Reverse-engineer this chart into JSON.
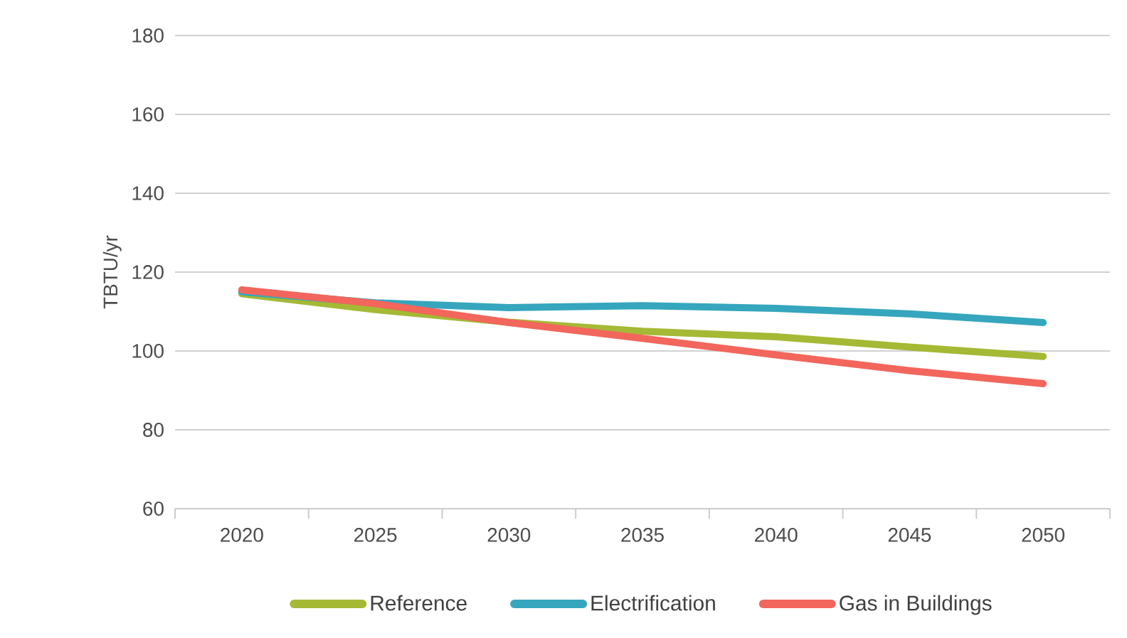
{
  "chart_data": {
    "type": "line",
    "ylabel": "TBTU/yr",
    "categories": [
      "2020",
      "2025",
      "2030",
      "2035",
      "2040",
      "2045",
      "2050"
    ],
    "series": [
      {
        "name": "Reference",
        "color": "#a5b935",
        "values": [
          114.5,
          110.5,
          107.3,
          105,
          103.6,
          101,
          98.6
        ]
      },
      {
        "name": "Electrification",
        "color": "#35a6bd",
        "values": [
          115,
          112.2,
          111,
          111.5,
          110.8,
          109.4,
          107.2
        ]
      },
      {
        "name": "Gas in Buildings",
        "color": "#f2665c",
        "values": [
          115.5,
          112,
          107.2,
          103.2,
          99,
          95,
          91.7
        ]
      }
    ],
    "ylim": [
      60,
      180
    ],
    "yticks": [
      60,
      80,
      100,
      120,
      140,
      160,
      180
    ],
    "grid": "y",
    "legend": "bottom",
    "marker": "none",
    "line_style": "solid"
  }
}
